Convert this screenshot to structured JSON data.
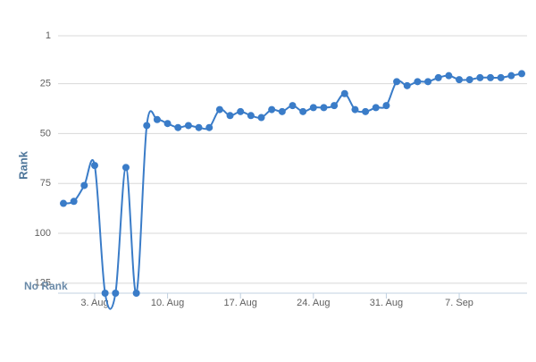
{
  "chart_data": {
    "type": "line",
    "y_label": "Rank",
    "annotation": "No Rank",
    "categories": [
      null,
      null,
      null,
      "3. Aug",
      null,
      null,
      null,
      null,
      null,
      null,
      "10. Aug",
      null,
      null,
      null,
      null,
      null,
      null,
      "17. Aug",
      null,
      null,
      null,
      null,
      null,
      null,
      "24. Aug",
      null,
      null,
      null,
      null,
      null,
      null,
      "31. Aug",
      null,
      null,
      null,
      null,
      null,
      null,
      "7. Sep",
      null,
      null,
      null,
      null,
      null,
      null
    ],
    "series": [
      {
        "name": "Rank",
        "color": "#3a7cc8",
        "values": [
          85,
          84,
          76,
          66,
          130,
          130,
          67,
          130,
          46,
          43,
          45,
          47,
          46,
          47,
          47,
          38,
          41,
          39,
          41,
          42,
          38,
          39,
          36,
          39,
          37,
          37,
          36,
          30,
          38,
          39,
          37,
          36,
          24,
          26,
          24,
          24,
          22,
          21,
          23,
          23,
          22,
          22,
          22,
          21,
          20
        ]
      }
    ],
    "ylim": [
      1,
      130
    ],
    "yticks": [
      1,
      25,
      50,
      75,
      100,
      125
    ],
    "y_inverted": true,
    "grid": true
  }
}
